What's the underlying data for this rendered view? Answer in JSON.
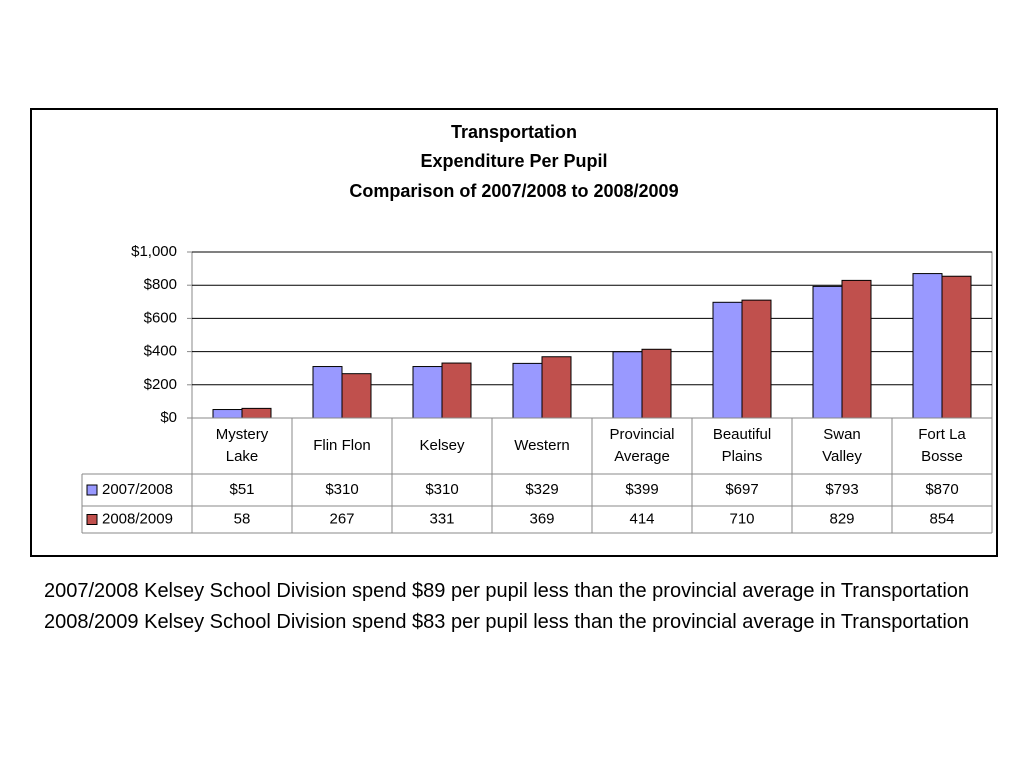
{
  "chart_data": {
    "type": "bar",
    "title_lines": [
      "Transportation",
      "Expenditure Per Pupil",
      "Comparison of 2007/2008 to 2008/2009"
    ],
    "categories": [
      [
        "Mystery",
        "Lake"
      ],
      [
        "Flin Flon"
      ],
      [
        "Kelsey"
      ],
      [
        "Western"
      ],
      [
        "Provincial",
        "Average"
      ],
      [
        "Beautiful",
        "Plains"
      ],
      [
        "Swan",
        "Valley"
      ],
      [
        "Fort La",
        "Bosse"
      ]
    ],
    "series": [
      {
        "name": "2007/2008",
        "color": "#9999ff",
        "values": [
          51,
          310,
          310,
          329,
          399,
          697,
          793,
          870
        ],
        "table_values": [
          "$51",
          "$310",
          "$310",
          "$329",
          "$399",
          "$697",
          "$793",
          "$870"
        ]
      },
      {
        "name": "2008/2009",
        "color": "#c0504d",
        "values": [
          58,
          267,
          331,
          369,
          414,
          710,
          829,
          854
        ],
        "table_values": [
          "58",
          "267",
          "331",
          "369",
          "414",
          "710",
          "829",
          "854"
        ]
      }
    ],
    "yticks": [
      0,
      200,
      400,
      600,
      800,
      1000
    ],
    "ytick_labels": [
      "$0",
      "$200",
      "$400",
      "$600",
      "$800",
      "$1,000"
    ],
    "ylim": [
      0,
      1000
    ],
    "grid": true,
    "legend": "data-table-left"
  },
  "notes": [
    "2007/2008 Kelsey School Division spend $89 per pupil less than the provincial average in Transportation",
    "2008/2009 Kelsey School Division spend $83 per pupil less than the provincial average in Transportation"
  ]
}
